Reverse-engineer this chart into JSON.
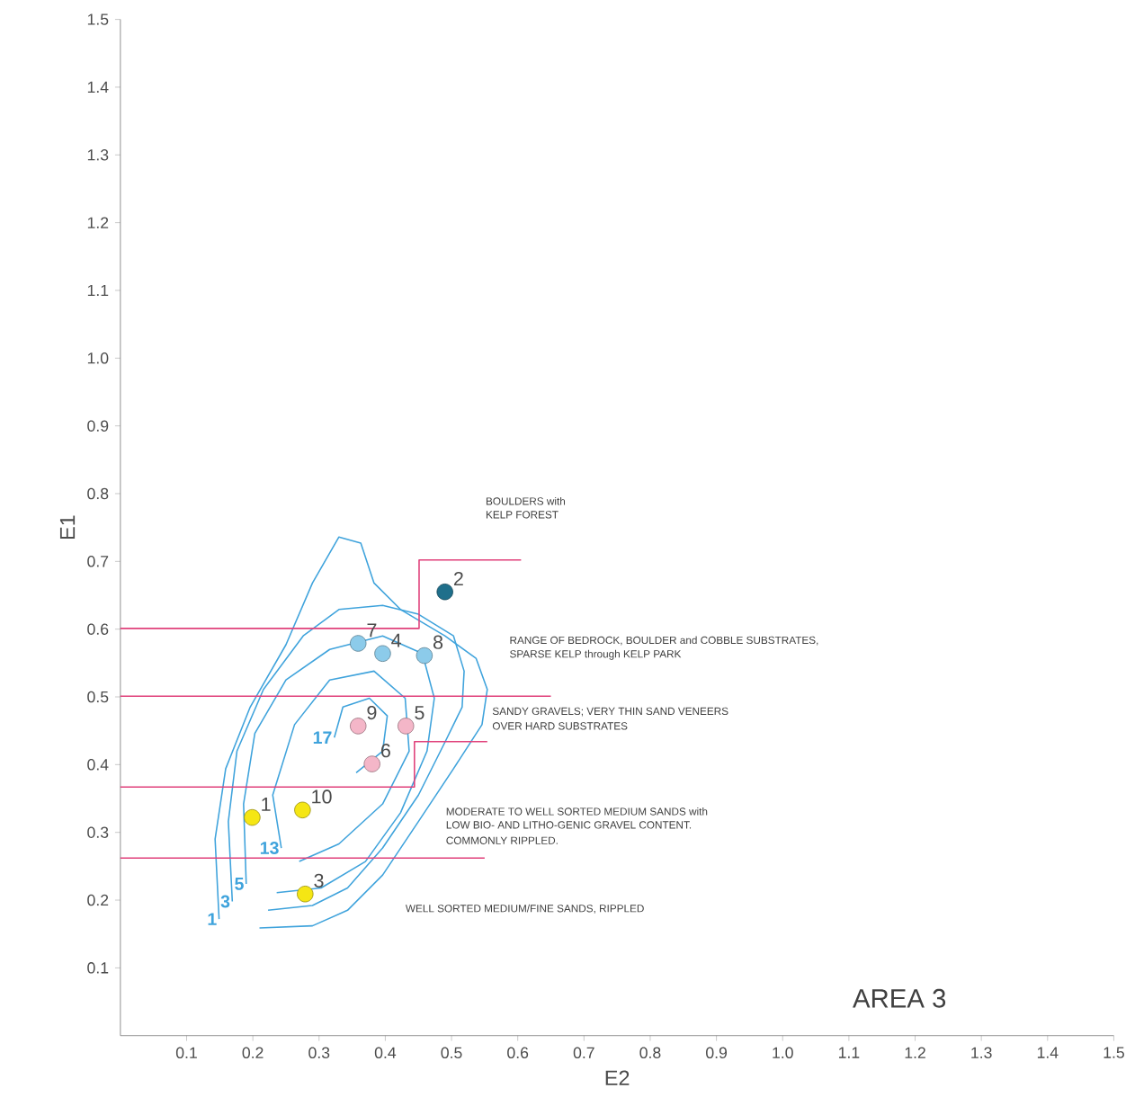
{
  "chart_data": {
    "type": "line",
    "xlabel": "E2",
    "ylabel": "E1",
    "xlim": [
      0,
      1.5
    ],
    "ylim": [
      0,
      1.5
    ],
    "marker": "circle",
    "xticks": [
      0.1,
      0.2,
      0.3,
      0.4,
      0.5,
      0.6,
      0.7,
      0.8,
      0.9,
      {
        "value": 1.0,
        "label": "1.0"
      },
      1.1,
      1.2,
      1.3,
      1.4,
      1.5
    ],
    "yticks": [
      0.1,
      0.2,
      0.3,
      0.4,
      0.5,
      0.6,
      0.7,
      0.8,
      0.9,
      {
        "value": 1.0,
        "label": "1.0"
      },
      1.1,
      1.2,
      1.3,
      1.4,
      1.5
    ],
    "series": [
      {
        "name": "1",
        "marker": "none",
        "color": "#3fa3dc",
        "x": [
          0.149,
          0.143,
          0.159,
          0.196,
          0.25,
          0.29,
          0.33,
          0.363,
          0.383,
          0.423,
          0.49,
          0.537,
          0.554,
          0.546,
          0.503,
          0.45,
          0.396,
          0.343,
          0.29,
          0.21
        ],
        "values": [
          0.172,
          0.29,
          0.394,
          0.485,
          0.577,
          0.668,
          0.736,
          0.727,
          0.668,
          0.629,
          0.59,
          0.557,
          0.511,
          0.459,
          0.394,
          0.316,
          0.237,
          0.185,
          0.162,
          0.159
        ]
      },
      {
        "name": "3",
        "marker": "none",
        "color": "#3fa3dc",
        "x": [
          0.169,
          0.163,
          0.176,
          0.216,
          0.276,
          0.33,
          0.396,
          0.45,
          0.503,
          0.519,
          0.516,
          0.49,
          0.45,
          0.396,
          0.343,
          0.29,
          0.223
        ],
        "values": [
          0.198,
          0.316,
          0.42,
          0.511,
          0.59,
          0.629,
          0.635,
          0.622,
          0.59,
          0.538,
          0.485,
          0.433,
          0.355,
          0.277,
          0.218,
          0.192,
          0.185
        ]
      },
      {
        "name": "5",
        "marker": "none",
        "color": "#3fa3dc",
        "x": [
          0.19,
          0.186,
          0.203,
          0.25,
          0.316,
          0.396,
          0.456,
          0.474,
          0.463,
          0.423,
          0.37,
          0.303,
          0.236
        ],
        "values": [
          0.224,
          0.342,
          0.446,
          0.525,
          0.57,
          0.59,
          0.564,
          0.498,
          0.42,
          0.329,
          0.257,
          0.218,
          0.211
        ]
      },
      {
        "name": "13",
        "marker": "none",
        "color": "#3fa3dc",
        "x": [
          0.243,
          0.23,
          0.263,
          0.316,
          0.383,
          0.43,
          0.436,
          0.396,
          0.33,
          0.27
        ],
        "values": [
          0.277,
          0.355,
          0.459,
          0.525,
          0.538,
          0.498,
          0.42,
          0.342,
          0.283,
          0.257
        ]
      },
      {
        "name": "17",
        "marker": "none",
        "color": "#3fa3dc",
        "x": [
          0.323,
          0.336,
          0.376,
          0.403,
          0.396,
          0.356
        ],
        "values": [
          0.44,
          0.485,
          0.498,
          0.472,
          0.42,
          0.388
        ]
      },
      {
        "marker": "none",
        "color": "#e0407a",
        "x": [
          0,
          0.451,
          0.451,
          0.605
        ],
        "values": [
          0.601,
          0.601,
          0.702,
          0.702
        ]
      },
      {
        "marker": "none",
        "color": "#e0407a",
        "x": [
          0,
          0.65
        ],
        "values": [
          0.501,
          0.501
        ]
      },
      {
        "marker": "none",
        "color": "#e0407a",
        "x": [
          0,
          0.444,
          0.444,
          0.554
        ],
        "values": [
          0.367,
          0.367,
          0.434,
          0.434
        ]
      },
      {
        "marker": "none",
        "color": "#e0407a",
        "x": [
          0,
          0.55
        ],
        "values": [
          0.262,
          0.262
        ]
      },
      {
        "type": "scatter",
        "name": "1",
        "color": "#f5e614",
        "x": [
          0.199
        ],
        "values": [
          0.322
        ]
      },
      {
        "type": "scatter",
        "name": "2",
        "color": "#1f6f8b",
        "x": [
          0.49
        ],
        "values": [
          0.655
        ]
      },
      {
        "type": "scatter",
        "name": "3",
        "color": "#f5e614",
        "x": [
          0.279
        ],
        "values": [
          0.209
        ]
      },
      {
        "type": "scatter",
        "name": "4",
        "color": "#8ccbea",
        "x": [
          0.396
        ],
        "values": [
          0.564
        ]
      },
      {
        "type": "scatter",
        "name": "5",
        "color": "#f4b6c8",
        "x": [
          0.431
        ],
        "values": [
          0.457
        ]
      },
      {
        "type": "scatter",
        "name": "6",
        "color": "#f4b6c8",
        "x": [
          0.38
        ],
        "values": [
          0.401
        ]
      },
      {
        "type": "scatter",
        "name": "7",
        "color": "#8ccbea",
        "x": [
          0.359
        ],
        "values": [
          0.579
        ]
      },
      {
        "type": "scatter",
        "name": "8",
        "color": "#8ccbea",
        "x": [
          0.459
        ],
        "values": [
          0.561
        ]
      },
      {
        "type": "scatter",
        "name": "9",
        "color": "#f4b6c8",
        "x": [
          0.359
        ],
        "values": [
          0.457
        ]
      },
      {
        "type": "scatter",
        "name": "10",
        "color": "#f5e614",
        "x": [
          0.275
        ],
        "values": [
          0.333
        ]
      }
    ],
    "annotations": [
      "BOULDERS with",
      "KELP FOREST",
      "RANGE OF BEDROCK, BOULDER and COBBLE SUBSTRATES,",
      "SPARSE KELP through KELP PARK",
      "SANDY GRAVELS; VERY THIN SAND VENEERS",
      "OVER HARD SUBSTRATES",
      "MODERATE TO WELL SORTED MEDIUM SANDS with",
      "LOW BIO- AND LITHO-GENIC GRAVEL CONTENT.",
      "COMMONLY RIPPLED.",
      "WELL SORTED MEDIUM/FINE SANDS, RIPPLED",
      "AREA 3"
    ]
  }
}
